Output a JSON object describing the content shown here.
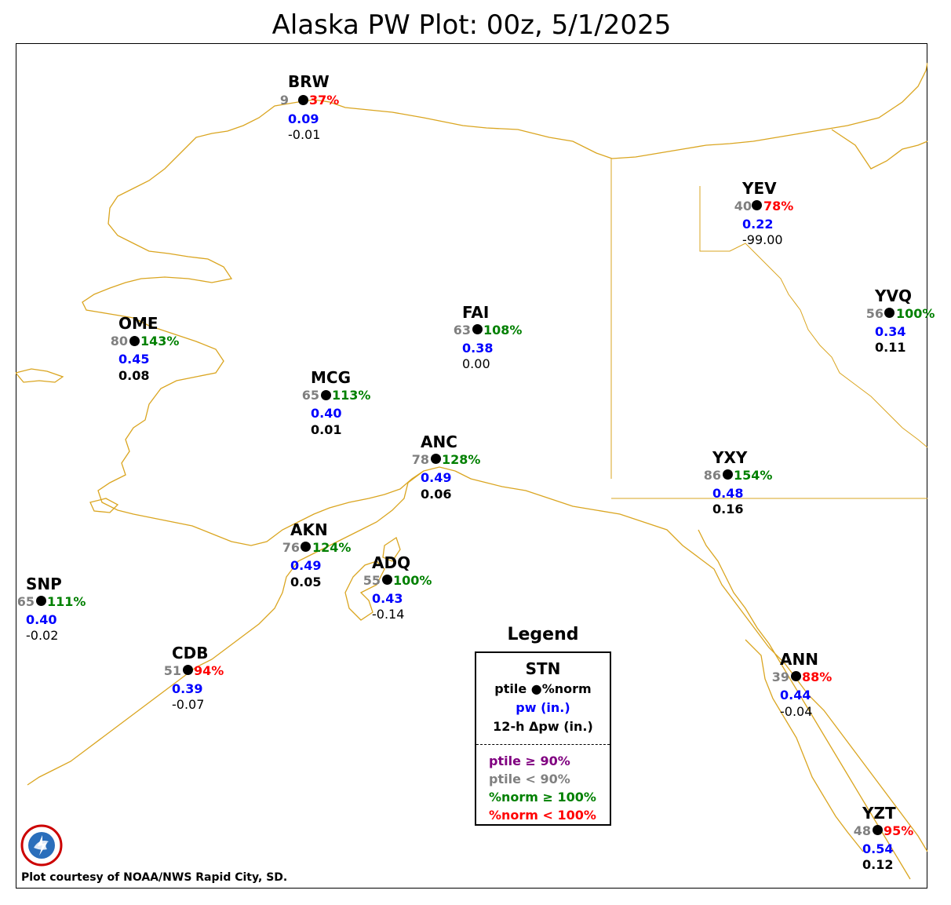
{
  "title": "Alaska PW Plot: 00z, 5/1/2025",
  "colors": {
    "coast": "#DAA520",
    "ptile_high": "#800080",
    "ptile_low": "#808080",
    "norm_high": "#008000",
    "norm_low": "#ff0000",
    "pw": "#0000ff"
  },
  "stations": [
    {
      "id": "BRW",
      "ptile": "9",
      "pnorm": "37%",
      "norm_class": "low",
      "pw": "0.09",
      "dpw": "-0.01",
      "dpw_bold": false
    },
    {
      "id": "YEV",
      "ptile": "40",
      "pnorm": "78%",
      "norm_class": "low",
      "pw": "0.22",
      "dpw": "-99.00",
      "dpw_bold": false
    },
    {
      "id": "YVQ",
      "ptile": "56",
      "pnorm": "100%",
      "norm_class": "high",
      "pw": "0.34",
      "dpw": "0.11",
      "dpw_bold": true
    },
    {
      "id": "OME",
      "ptile": "80",
      "pnorm": "143%",
      "norm_class": "high",
      "pw": "0.45",
      "dpw": "0.08",
      "dpw_bold": true
    },
    {
      "id": "FAI",
      "ptile": "63",
      "pnorm": "108%",
      "norm_class": "high",
      "pw": "0.38",
      "dpw": "0.00",
      "dpw_bold": false
    },
    {
      "id": "MCG",
      "ptile": "65",
      "pnorm": "113%",
      "norm_class": "high",
      "pw": "0.40",
      "dpw": "0.01",
      "dpw_bold": true
    },
    {
      "id": "ANC",
      "ptile": "78",
      "pnorm": "128%",
      "norm_class": "high",
      "pw": "0.49",
      "dpw": "0.06",
      "dpw_bold": true
    },
    {
      "id": "YXY",
      "ptile": "86",
      "pnorm": "154%",
      "norm_class": "high",
      "pw": "0.48",
      "dpw": "0.16",
      "dpw_bold": true
    },
    {
      "id": "AKN",
      "ptile": "76",
      "pnorm": "124%",
      "norm_class": "high",
      "pw": "0.49",
      "dpw": "0.05",
      "dpw_bold": true
    },
    {
      "id": "ADQ",
      "ptile": "55",
      "pnorm": "100%",
      "norm_class": "high",
      "pw": "0.43",
      "dpw": "-0.14",
      "dpw_bold": false
    },
    {
      "id": "SNP",
      "ptile": "65",
      "pnorm": "111%",
      "norm_class": "high",
      "pw": "0.40",
      "dpw": "-0.02",
      "dpw_bold": false
    },
    {
      "id": "CDB",
      "ptile": "51",
      "pnorm": "94%",
      "norm_class": "low",
      "pw": "0.39",
      "dpw": "-0.07",
      "dpw_bold": false
    },
    {
      "id": "ANN",
      "ptile": "39",
      "pnorm": "88%",
      "norm_class": "low",
      "pw": "0.44",
      "dpw": "-0.04",
      "dpw_bold": false
    },
    {
      "id": "YZT",
      "ptile": "48",
      "pnorm": "95%",
      "norm_class": "low",
      "pw": "0.54",
      "dpw": "0.12",
      "dpw_bold": true
    }
  ],
  "legend": {
    "title": "Legend",
    "stn": "STN",
    "ptile_norm": "ptile ●%norm",
    "pw": "pw (in.)",
    "dpw": "12-h Δpw (in.)",
    "ptile_high": "ptile ≥ 90%",
    "ptile_low": "ptile < 90%",
    "norm_high": "%norm ≥ 100%",
    "norm_low": "%norm < 100%"
  },
  "credit": "Plot courtesy of NOAA/NWS Rapid City, SD.",
  "logo_text": "NATIONAL WEATHER SERVICE"
}
